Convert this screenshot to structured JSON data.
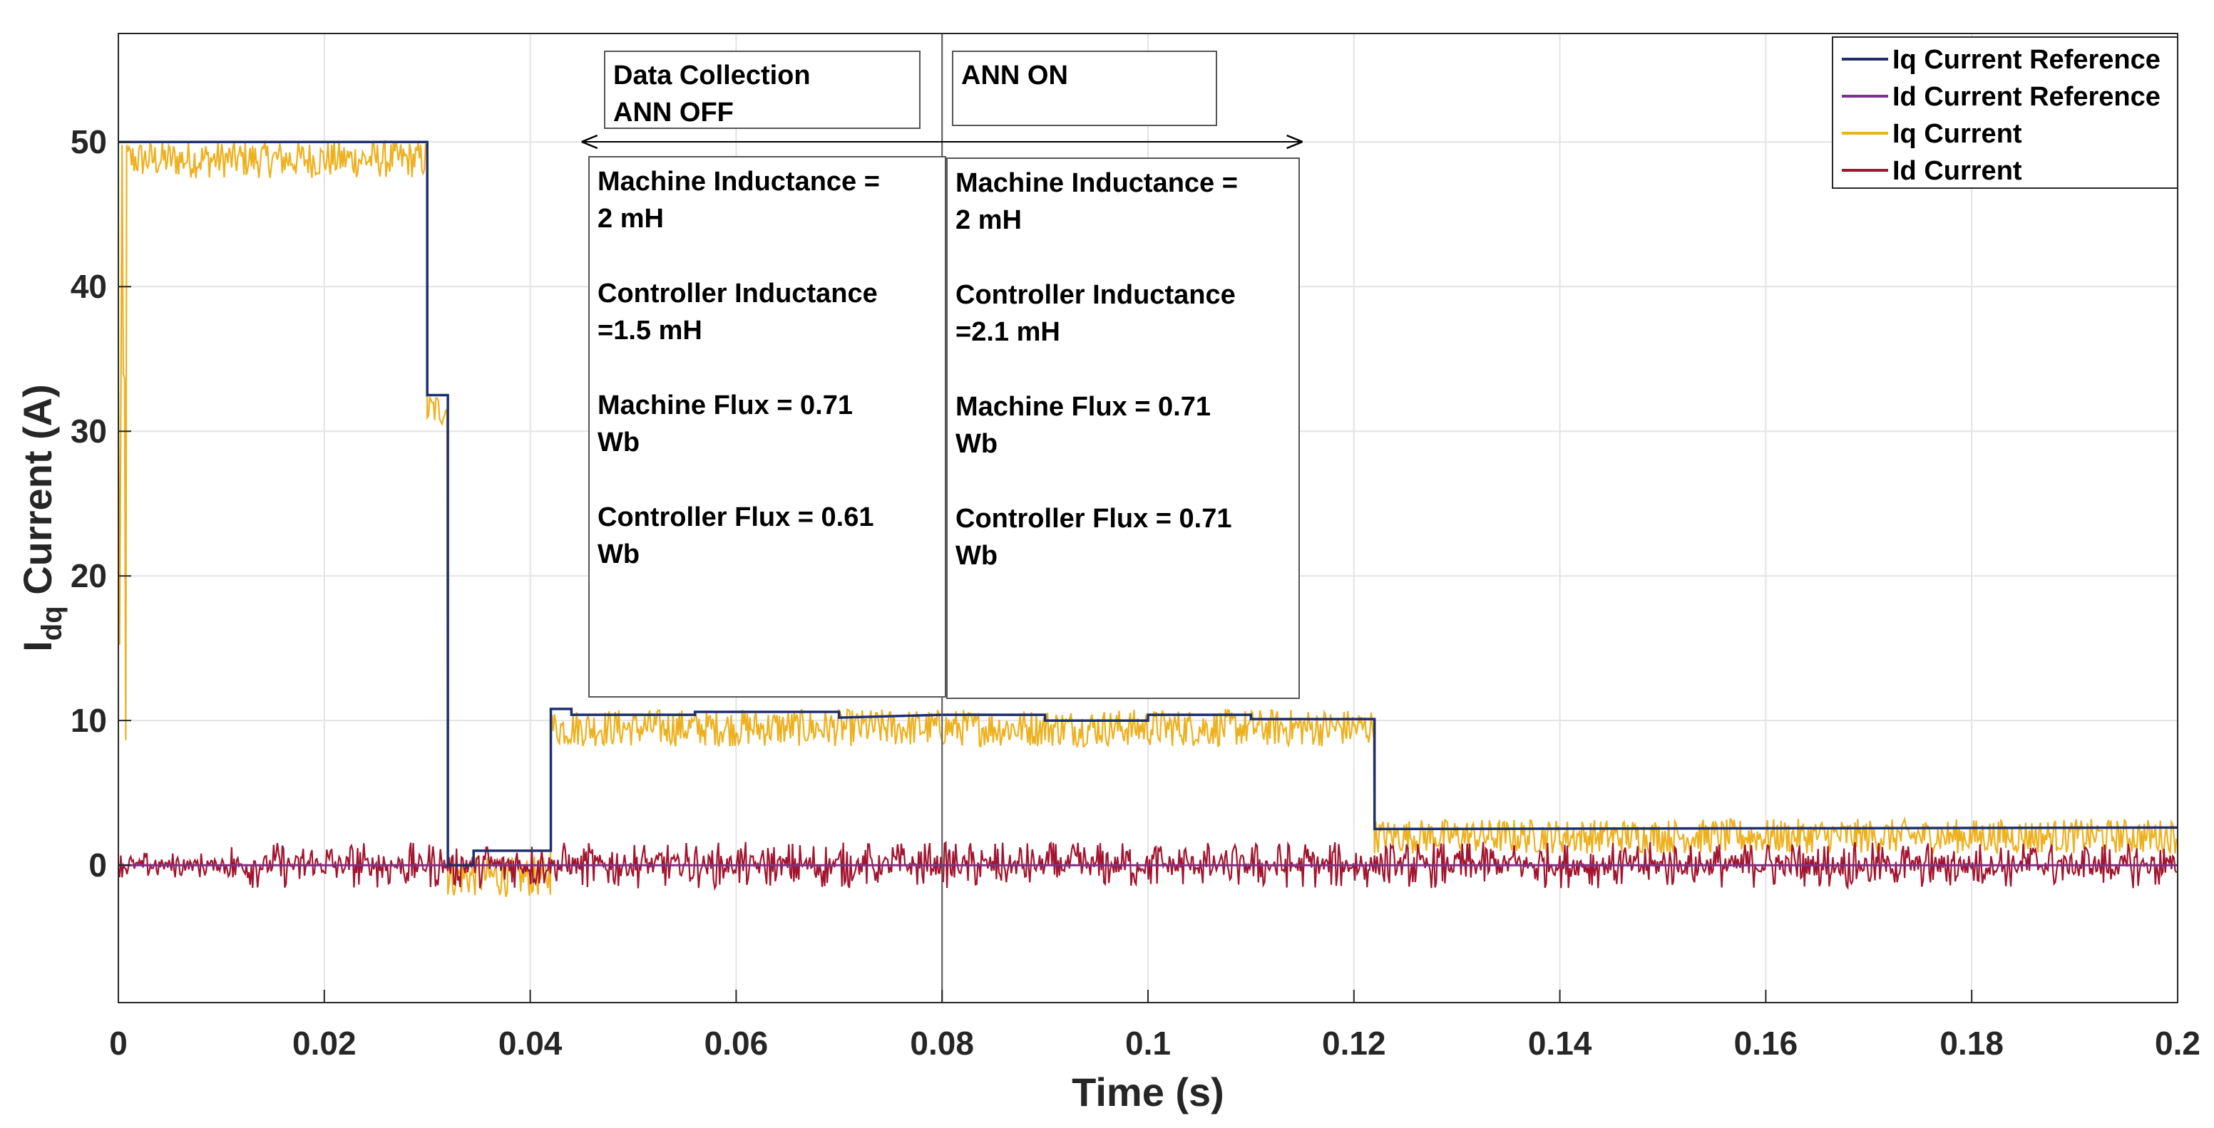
{
  "chart_data": {
    "type": "line",
    "title": "",
    "xlabel": "Time (s)",
    "ylabel_main": "I",
    "ylabel_sub": "dq",
    "ylabel_rest": " Current (A)",
    "xlim": [
      0,
      0.2
    ],
    "ylim": [
      -9.5,
      57.5
    ],
    "grid": true,
    "xticks": [
      0,
      0.02,
      0.04,
      0.06,
      0.08,
      0.1,
      0.12,
      0.14,
      0.16,
      0.18,
      0.2
    ],
    "xtick_labels": [
      "0",
      "0.02",
      "0.04",
      "0.06",
      "0.08",
      "0.1",
      "0.12",
      "0.14",
      "0.16",
      "0.18",
      "0.2"
    ],
    "yticks": [
      0,
      10,
      20,
      30,
      40,
      50
    ],
    "ytick_labels": [
      "0",
      "10",
      "20",
      "30",
      "40",
      "50"
    ],
    "legend_position": "top-right",
    "series": [
      {
        "name": "Iq Current Reference",
        "color": "#1f2f6e",
        "style": "step",
        "points": [
          [
            0,
            50
          ],
          [
            0.03,
            50
          ],
          [
            0.03,
            32.5
          ],
          [
            0.032,
            32.5
          ],
          [
            0.032,
            0
          ],
          [
            0.0345,
            0
          ],
          [
            0.0345,
            1
          ],
          [
            0.042,
            1
          ],
          [
            0.042,
            10.8
          ],
          [
            0.044,
            10.8
          ],
          [
            0.044,
            10.4
          ],
          [
            0.056,
            10.4
          ],
          [
            0.056,
            10.6
          ],
          [
            0.07,
            10.6
          ],
          [
            0.07,
            10.2
          ],
          [
            0.08,
            10.4
          ],
          [
            0.09,
            10.4
          ],
          [
            0.09,
            10.0
          ],
          [
            0.1,
            10.0
          ],
          [
            0.1,
            10.4
          ],
          [
            0.11,
            10.4
          ],
          [
            0.11,
            10.1
          ],
          [
            0.122,
            10.1
          ],
          [
            0.122,
            2.5
          ],
          [
            0.2,
            2.6
          ]
        ]
      },
      {
        "name": "Id Current Reference",
        "color": "#7e2f8e",
        "style": "flat",
        "points": [
          [
            0,
            0
          ],
          [
            0.2,
            0
          ]
        ]
      },
      {
        "name": "Iq Current",
        "color": "#edb120",
        "style": "noisy-band",
        "segments": [
          {
            "t0": 0,
            "t1": 0.0008,
            "center": 25,
            "amplitude": 25
          },
          {
            "t0": 0.0008,
            "t1": 0.03,
            "center": 48.8,
            "amplitude": 1.3
          },
          {
            "t0": 0.03,
            "t1": 0.032,
            "center": 31.5,
            "amplitude": 1.2
          },
          {
            "t0": 0.032,
            "t1": 0.042,
            "center": -0.8,
            "amplitude": 1.4
          },
          {
            "t0": 0.042,
            "t1": 0.122,
            "center": 9.5,
            "amplitude": 1.3
          },
          {
            "t0": 0.122,
            "t1": 0.2,
            "center": 2.0,
            "amplitude": 1.2
          }
        ]
      },
      {
        "name": "Id Current",
        "color": "#a2142f",
        "style": "noisy-band",
        "segments": [
          {
            "t0": 0,
            "t1": 0.011,
            "center": 0,
            "amplitude": 0.9
          },
          {
            "t0": 0.011,
            "t1": 0.2,
            "center": 0,
            "amplitude": 1.6
          }
        ]
      }
    ],
    "annotations": {
      "phase1": {
        "line1": "Data Collection",
        "line2": "ANN OFF",
        "color": "#0072bd"
      },
      "phase2": {
        "text": "ANN ON",
        "color": "#ff0000"
      },
      "box1": [
        "Machine Inductance =",
        "2 mH",
        "Controller Inductance",
        "=1.5 mH",
        "Machine Flux = 0.71",
        "Wb",
        "Controller Flux = 0.61",
        "Wb"
      ],
      "box2": [
        "Machine Inductance =",
        "2 mH",
        "Controller Inductance",
        "=2.1 mH",
        "Machine Flux = 0.71",
        "Wb",
        "Controller Flux = 0.71",
        "Wb"
      ],
      "phase_arrow": {
        "from": 0.045,
        "to": 0.115
      }
    }
  }
}
